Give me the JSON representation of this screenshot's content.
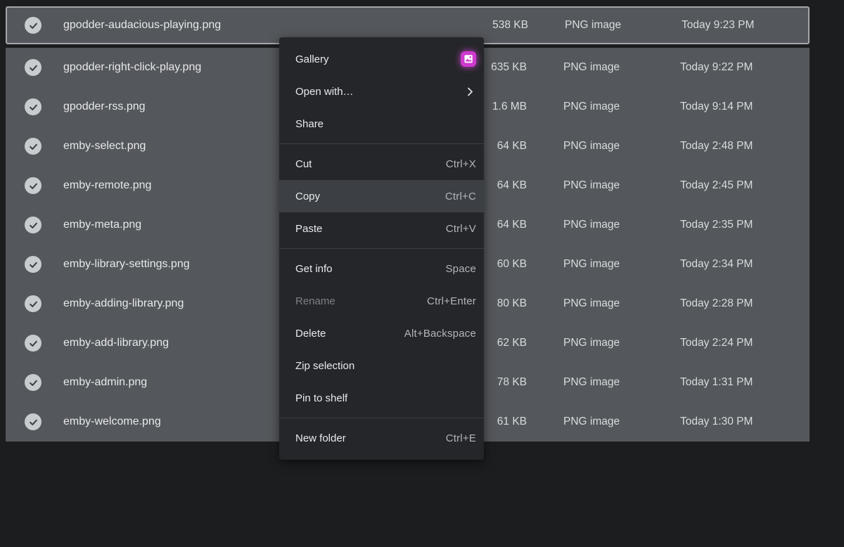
{
  "colors": {
    "page_bg": "#1b1d1f",
    "selection_bg": "#54575b",
    "focus_ring": "#a4a8ac",
    "menu_bg": "#242629",
    "menu_highlight": "#3c4044",
    "gallery_icon": "#ce3ace"
  },
  "icons": {
    "row_selected": "check-circle",
    "gallery_item": "gallery-app",
    "open_with_item": "chevron-right"
  },
  "file_list": {
    "rows": [
      {
        "name": "gpodder-audacious-playing.png",
        "size": "538 KB",
        "type": "PNG image",
        "date": "Today 9:23 PM",
        "selected": true,
        "focused": true
      },
      {
        "name": "gpodder-right-click-play.png",
        "size": "635 KB",
        "type": "PNG image",
        "date": "Today 9:22 PM",
        "selected": true
      },
      {
        "name": "gpodder-rss.png",
        "size": "1.6 MB",
        "type": "PNG image",
        "date": "Today 9:14 PM",
        "selected": true
      },
      {
        "name": "emby-select.png",
        "size": "64 KB",
        "type": "PNG image",
        "date": "Today 2:48 PM",
        "selected": true
      },
      {
        "name": "emby-remote.png",
        "size": "64 KB",
        "type": "PNG image",
        "date": "Today 2:45 PM",
        "selected": true
      },
      {
        "name": "emby-meta.png",
        "size": "64 KB",
        "type": "PNG image",
        "date": "Today 2:35 PM",
        "selected": true
      },
      {
        "name": "emby-library-settings.png",
        "size": "60 KB",
        "type": "PNG image",
        "date": "Today 2:34 PM",
        "selected": true
      },
      {
        "name": "emby-adding-library.png",
        "size": "80 KB",
        "type": "PNG image",
        "date": "Today 2:28 PM",
        "selected": true
      },
      {
        "name": "emby-add-library.png",
        "size": "62 KB",
        "type": "PNG image",
        "date": "Today 2:24 PM",
        "selected": true
      },
      {
        "name": "emby-admin.png",
        "size": "78 KB",
        "type": "PNG image",
        "date": "Today 1:31 PM",
        "selected": true
      },
      {
        "name": "emby-welcome.png",
        "size": "61 KB",
        "type": "PNG image",
        "date": "Today 1:30 PM",
        "selected": true
      }
    ]
  },
  "context_menu": {
    "sections": [
      {
        "items": [
          {
            "label": "Gallery",
            "gallery_icon": true
          },
          {
            "label": "Open with…",
            "submenu": true
          },
          {
            "label": "Share"
          }
        ]
      },
      {
        "items": [
          {
            "label": "Cut",
            "shortcut": "Ctrl+X"
          },
          {
            "label": "Copy",
            "shortcut": "Ctrl+C",
            "highlighted": true
          },
          {
            "label": "Paste",
            "shortcut": "Ctrl+V"
          }
        ]
      },
      {
        "items": [
          {
            "label": "Get info",
            "shortcut": "Space"
          },
          {
            "label": "Rename",
            "shortcut": "Ctrl+Enter",
            "disabled": true
          },
          {
            "label": "Delete",
            "shortcut": "Alt+Backspace"
          },
          {
            "label": "Zip selection"
          },
          {
            "label": "Pin to shelf"
          }
        ]
      },
      {
        "items": [
          {
            "label": "New folder",
            "shortcut": "Ctrl+E"
          }
        ]
      }
    ]
  }
}
